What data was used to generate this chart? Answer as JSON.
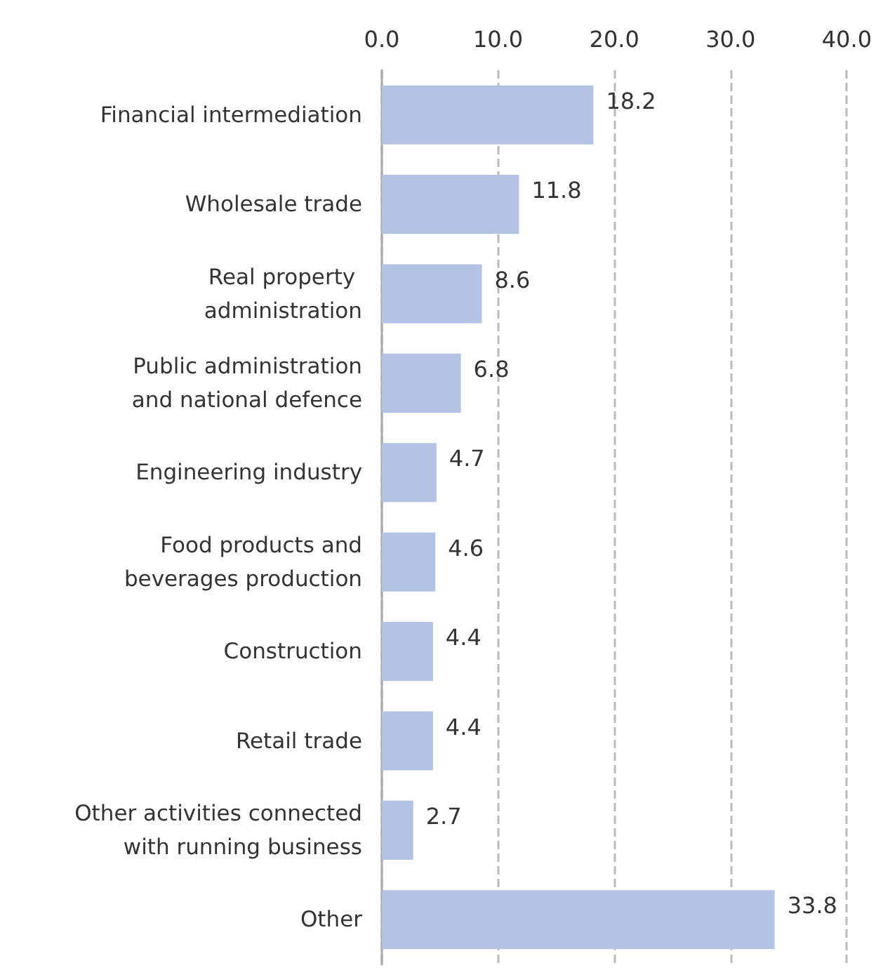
{
  "chart_data": {
    "type": "bar",
    "orientation": "horizontal",
    "categories": [
      "Financial intermediation",
      "Wholesale trade",
      "Real property \nadministration",
      "Public administration\nand national defence",
      "Engineering industry",
      "Food products and\nbeverages production",
      "Construction",
      "Retail trade",
      "Other activities connected\nwith running business",
      "Other"
    ],
    "values": [
      18.2,
      11.8,
      8.6,
      6.8,
      4.7,
      4.6,
      4.4,
      4.4,
      2.7,
      33.8
    ],
    "color": "#b4c3e4",
    "xlim": [
      0,
      40
    ],
    "xticks": [
      {
        "value": 0,
        "label": "0.0"
      },
      {
        "value": 10,
        "label": "10.0"
      },
      {
        "value": 20,
        "label": "20.0"
      },
      {
        "value": 30,
        "label": "30.0"
      },
      {
        "value": 40,
        "label": "40.0"
      }
    ],
    "grid": "x",
    "data_labels": true
  }
}
